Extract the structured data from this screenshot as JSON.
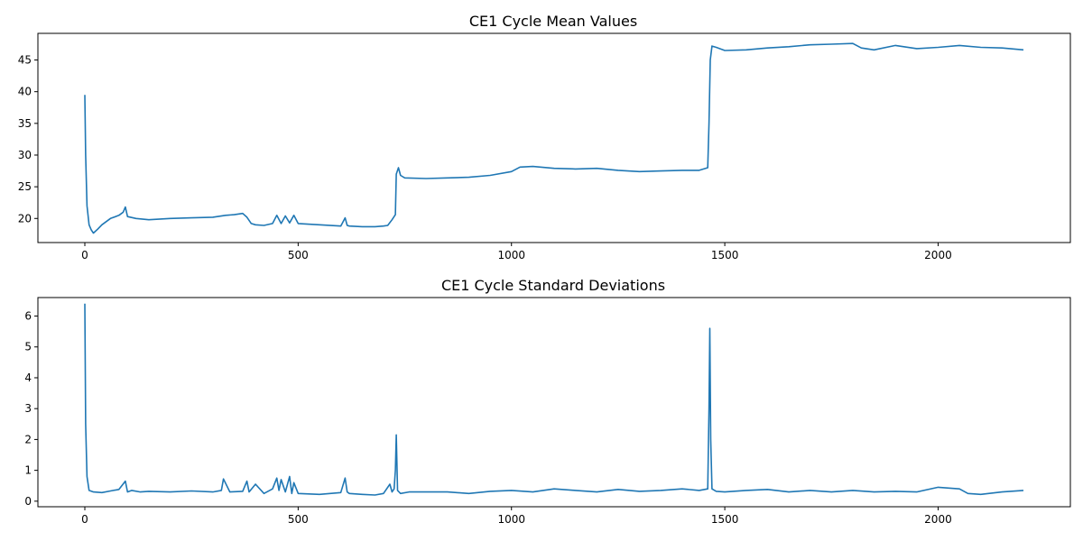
{
  "colors": {
    "series": "#1f77b4",
    "axes": "#000000",
    "background": "#ffffff"
  },
  "chart_data": [
    {
      "type": "line",
      "title": "CE1 Cycle Mean Values",
      "xlabel": "",
      "ylabel": "",
      "xlim": [
        -110,
        2310
      ],
      "ylim": [
        16.2,
        49.2
      ],
      "xticks": [
        0,
        500,
        1000,
        1500,
        2000
      ],
      "yticks": [
        20,
        25,
        30,
        35,
        40,
        45
      ],
      "grid": false,
      "series": [
        {
          "x": [
            0,
            2,
            5,
            10,
            15,
            20,
            30,
            40,
            60,
            80,
            90,
            95,
            100,
            120,
            150,
            200,
            250,
            300,
            330,
            350,
            370,
            380,
            390,
            400,
            420,
            440,
            450,
            460,
            470,
            480,
            490,
            500,
            550,
            600,
            610,
            615,
            620,
            650,
            680,
            700,
            710,
            720,
            725,
            728,
            730,
            735,
            740,
            750,
            800,
            850,
            900,
            950,
            1000,
            1020,
            1050,
            1100,
            1150,
            1200,
            1250,
            1300,
            1350,
            1400,
            1440,
            1460,
            1463,
            1466,
            1470,
            1480,
            1500,
            1550,
            1600,
            1650,
            1700,
            1750,
            1800,
            1820,
            1850,
            1900,
            1950,
            2000,
            2050,
            2100,
            2150,
            2200
          ],
          "y": [
            39.5,
            30.0,
            22.0,
            19.0,
            18.2,
            17.7,
            18.3,
            19.0,
            20.0,
            20.5,
            21.0,
            21.8,
            20.3,
            20.0,
            19.8,
            20.0,
            20.1,
            20.2,
            20.5,
            20.6,
            20.8,
            20.2,
            19.2,
            19.0,
            18.9,
            19.2,
            20.5,
            19.2,
            20.4,
            19.3,
            20.5,
            19.2,
            19.0,
            18.8,
            20.1,
            18.9,
            18.8,
            18.7,
            18.7,
            18.8,
            18.9,
            19.8,
            20.3,
            20.6,
            27.0,
            28.0,
            26.8,
            26.4,
            26.3,
            26.4,
            26.5,
            26.8,
            27.4,
            28.1,
            28.2,
            27.9,
            27.8,
            27.9,
            27.6,
            27.4,
            27.5,
            27.6,
            27.6,
            28.0,
            35.0,
            45.0,
            47.2,
            47.0,
            46.5,
            46.6,
            46.9,
            47.1,
            47.4,
            47.5,
            47.6,
            46.9,
            46.6,
            47.3,
            46.8,
            47.0,
            47.3,
            47.0,
            46.9,
            46.6
          ]
        }
      ]
    },
    {
      "type": "line",
      "title": "CE1 Cycle Standard Deviations",
      "xlabel": "",
      "ylabel": "",
      "xlim": [
        -110,
        2310
      ],
      "ylim": [
        -0.18,
        6.6
      ],
      "xticks": [
        0,
        500,
        1000,
        1500,
        2000
      ],
      "yticks": [
        0,
        1,
        2,
        3,
        4,
        5,
        6
      ],
      "grid": false,
      "series": [
        {
          "x": [
            0,
            2,
            5,
            10,
            20,
            40,
            60,
            80,
            95,
            100,
            110,
            130,
            150,
            200,
            250,
            300,
            320,
            325,
            340,
            370,
            380,
            385,
            400,
            420,
            440,
            450,
            455,
            460,
            470,
            480,
            485,
            490,
            500,
            550,
            600,
            610,
            615,
            620,
            650,
            680,
            700,
            715,
            720,
            725,
            728,
            730,
            733,
            740,
            760,
            800,
            850,
            900,
            950,
            1000,
            1050,
            1100,
            1150,
            1200,
            1250,
            1300,
            1350,
            1400,
            1440,
            1460,
            1463,
            1465,
            1467,
            1470,
            1480,
            1500,
            1550,
            1600,
            1650,
            1700,
            1750,
            1800,
            1850,
            1900,
            1950,
            2000,
            2050,
            2070,
            2100,
            2150,
            2200
          ],
          "y": [
            6.4,
            2.5,
            0.8,
            0.35,
            0.3,
            0.28,
            0.33,
            0.38,
            0.65,
            0.3,
            0.35,
            0.3,
            0.32,
            0.3,
            0.33,
            0.3,
            0.35,
            0.72,
            0.3,
            0.32,
            0.65,
            0.3,
            0.55,
            0.25,
            0.4,
            0.75,
            0.35,
            0.7,
            0.3,
            0.8,
            0.25,
            0.6,
            0.25,
            0.22,
            0.28,
            0.75,
            0.3,
            0.25,
            0.22,
            0.2,
            0.25,
            0.55,
            0.3,
            0.4,
            1.0,
            2.15,
            0.35,
            0.25,
            0.3,
            0.3,
            0.3,
            0.25,
            0.32,
            0.35,
            0.3,
            0.4,
            0.35,
            0.3,
            0.38,
            0.32,
            0.35,
            0.4,
            0.35,
            0.4,
            3.0,
            5.6,
            2.0,
            0.4,
            0.32,
            0.3,
            0.35,
            0.38,
            0.3,
            0.35,
            0.3,
            0.35,
            0.3,
            0.32,
            0.3,
            0.45,
            0.4,
            0.25,
            0.22,
            0.3,
            0.35
          ]
        }
      ]
    }
  ]
}
